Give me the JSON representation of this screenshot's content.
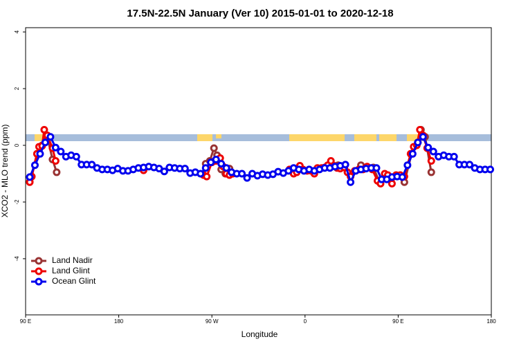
{
  "chart_data": {
    "type": "line",
    "title": "17.5N-22.5N January (Ver 10)   2015-01-01 to 2020-12-18",
    "x_label": "Longitude",
    "y_label": "XCO2 - MLO trend (ppm)",
    "xlim": [
      90,
      540
    ],
    "ylim": [
      -5.98,
      4.15
    ],
    "xticks": [
      {
        "value": 90,
        "label": "90 E"
      },
      180,
      {
        "value": 270,
        "label": "90 W"
      },
      {
        "value": 360,
        "label": "0"
      },
      {
        "value": 450,
        "label": "90 E"
      },
      {
        "value": 540,
        "label": "180"
      }
    ],
    "yticks": [
      -4,
      -2,
      0,
      2,
      4
    ],
    "legend": "bottomleft",
    "series": [
      {
        "name": "Land Nadir",
        "color": "#993333",
        "x": [
          94,
          101,
          106,
          111,
          116,
          120,
          200,
          264,
          268,
          272,
          275,
          279,
          283,
          287,
          290,
          320,
          392,
          400,
          414,
          426,
          432,
          440,
          456,
          463,
          469,
          472,
          476,
          482
        ],
        "values": [
          -1.28,
          -0.3,
          0.0,
          0.3,
          -0.5,
          -0.95,
          null,
          -0.65,
          -0.55,
          -0.1,
          -0.35,
          -0.85,
          -1.0,
          -0.82,
          -1.0,
          null,
          -0.7,
          null,
          -0.7,
          -0.78,
          -1.3,
          null,
          -1.3,
          -0.3,
          0.1,
          0.55,
          0.3,
          -0.95
        ]
      },
      {
        "name": "Land Glint",
        "color": "#ee0000",
        "x": [
          94,
          96,
          101,
          103,
          106,
          108,
          111,
          116,
          119,
          150,
          204,
          230,
          262,
          265,
          270,
          274,
          278,
          281,
          284,
          287,
          290,
          320,
          345,
          349,
          352,
          355,
          358,
          362,
          366,
          369,
          372,
          376,
          379,
          382,
          385,
          388,
          391,
          394,
          398,
          401,
          404,
          408,
          412,
          416,
          420,
          425,
          430,
          433,
          437,
          440,
          444,
          448,
          452,
          456,
          462,
          465,
          468,
          471,
          474,
          478,
          482
        ],
        "values": [
          -1.3,
          -1.1,
          -0.3,
          -0.05,
          -0.02,
          0.55,
          0.35,
          -0.1,
          -0.55,
          null,
          -0.88,
          null,
          -1.05,
          -1.1,
          -0.6,
          -0.55,
          -0.45,
          -0.75,
          -1.0,
          -1.05,
          -1.0,
          null,
          -0.85,
          -1.0,
          -0.95,
          -0.72,
          -0.85,
          -0.9,
          -0.9,
          -1.0,
          -0.8,
          -0.8,
          -0.78,
          -0.7,
          -0.55,
          -0.72,
          -0.8,
          -0.82,
          -0.78,
          -0.95,
          -1.1,
          -0.9,
          -0.85,
          -0.85,
          -0.75,
          -0.85,
          -1.25,
          -1.35,
          -1.0,
          -1.05,
          -1.35,
          -1.05,
          -1.05,
          -1.1,
          -0.3,
          -0.05,
          0.0,
          0.55,
          0.35,
          -0.1,
          -0.55
        ]
      },
      {
        "name": "Ocean Glint",
        "color": "#0000ee",
        "x": [
          94,
          99,
          104,
          109,
          114,
          119,
          124,
          129,
          134,
          139,
          144,
          149,
          154,
          159,
          164,
          169,
          174,
          179,
          184,
          189,
          194,
          199,
          204,
          209,
          214,
          219,
          224,
          229,
          234,
          239,
          244,
          249,
          254,
          259,
          264,
          269,
          274,
          279,
          284,
          289,
          294,
          299,
          304,
          309,
          314,
          319,
          324,
          329,
          334,
          339,
          344,
          349,
          354,
          359,
          364,
          369,
          374,
          379,
          384,
          389,
          394,
          399,
          404,
          409,
          414,
          419,
          424,
          429,
          434,
          439,
          444,
          449,
          454,
          459,
          464,
          469,
          474,
          479,
          484,
          489,
          494,
          499,
          504,
          509,
          514,
          519,
          524,
          529,
          534,
          539
        ],
        "values": [
          -1.12,
          -0.7,
          -0.3,
          0.1,
          0.3,
          -0.08,
          -0.22,
          -0.4,
          -0.35,
          -0.4,
          -0.68,
          -0.68,
          -0.68,
          -0.8,
          -0.85,
          -0.85,
          -0.88,
          -0.82,
          -0.9,
          -0.9,
          -0.85,
          -0.8,
          -0.78,
          -0.75,
          -0.78,
          -0.82,
          -0.92,
          -0.78,
          -0.8,
          -0.82,
          -0.82,
          -0.98,
          -0.95,
          -1.0,
          -0.8,
          -0.6,
          -0.5,
          -0.65,
          -0.8,
          -0.95,
          -1.0,
          -1.0,
          -1.15,
          -1.0,
          -1.07,
          -1.02,
          -1.05,
          -1.02,
          -0.93,
          -0.98,
          -0.9,
          -0.8,
          -0.85,
          -0.9,
          -0.85,
          -0.9,
          -0.85,
          -0.8,
          -0.8,
          -0.75,
          -0.72,
          -0.68,
          -1.3,
          -0.9,
          -0.85,
          -0.82,
          -0.8,
          -0.8,
          -1.2,
          -1.2,
          -1.12,
          -1.1,
          -1.12,
          -0.7,
          -0.3,
          0.1,
          0.3,
          -0.08,
          -0.22,
          -0.4,
          -0.35,
          -0.4,
          -0.4,
          -0.68,
          -0.68,
          -0.68,
          -0.8,
          -0.85,
          -0.85,
          -0.85
        ]
      }
    ]
  }
}
